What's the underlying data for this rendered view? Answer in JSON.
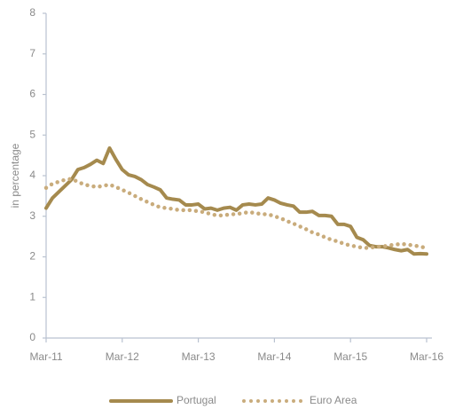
{
  "chart_data": {
    "type": "line",
    "y_label": "in percentage",
    "categories": [
      "Mar-11",
      null,
      null,
      null,
      null,
      null,
      null,
      null,
      null,
      null,
      null,
      null,
      "Mar-12",
      null,
      null,
      null,
      null,
      null,
      null,
      null,
      null,
      null,
      null,
      null,
      "Mar-13",
      null,
      null,
      null,
      null,
      null,
      null,
      null,
      null,
      null,
      null,
      null,
      "Mar-14",
      null,
      null,
      null,
      null,
      null,
      null,
      null,
      null,
      null,
      null,
      null,
      "Mar-15",
      null,
      null,
      null,
      null,
      null,
      null,
      null,
      null,
      null,
      null,
      null,
      "Mar-16"
    ],
    "series": [
      {
        "name": "Portugal",
        "color": "#a58a4e",
        "style": "solid",
        "values": [
          3.2,
          3.45,
          3.6,
          3.75,
          3.9,
          4.15,
          4.2,
          4.28,
          4.38,
          4.3,
          4.68,
          4.4,
          4.15,
          4.02,
          3.98,
          3.9,
          3.78,
          3.72,
          3.65,
          3.45,
          3.42,
          3.4,
          3.28,
          3.28,
          3.3,
          3.18,
          3.2,
          3.15,
          3.2,
          3.22,
          3.15,
          3.28,
          3.3,
          3.28,
          3.3,
          3.45,
          3.4,
          3.32,
          3.28,
          3.25,
          3.1,
          3.1,
          3.12,
          3.02,
          3.02,
          3.0,
          2.8,
          2.8,
          2.75,
          2.48,
          2.42,
          2.28,
          2.25,
          2.25,
          2.22,
          2.18,
          2.15,
          2.18,
          2.07,
          2.08,
          2.07
        ]
      },
      {
        "name": "Euro Area",
        "color": "#c9ac7c",
        "style": "dotted",
        "values": [
          3.7,
          3.8,
          3.85,
          3.9,
          3.92,
          3.85,
          3.78,
          3.75,
          3.72,
          3.75,
          3.78,
          3.72,
          3.65,
          3.58,
          3.5,
          3.42,
          3.35,
          3.28,
          3.22,
          3.2,
          3.18,
          3.15,
          3.15,
          3.15,
          3.12,
          3.1,
          3.05,
          3.02,
          3.02,
          3.05,
          3.05,
          3.08,
          3.1,
          3.08,
          3.05,
          3.05,
          3.0,
          2.95,
          2.88,
          2.82,
          2.75,
          2.68,
          2.6,
          2.55,
          2.48,
          2.42,
          2.38,
          2.32,
          2.28,
          2.25,
          2.22,
          2.22,
          2.25,
          2.25,
          2.28,
          2.3,
          2.32,
          2.3,
          2.28,
          2.25,
          2.22
        ]
      }
    ],
    "ylim": [
      0,
      8
    ],
    "yticks": [
      0,
      1,
      2,
      3,
      4,
      5,
      6,
      7,
      8
    ],
    "grid": false,
    "legend": "bottom"
  }
}
